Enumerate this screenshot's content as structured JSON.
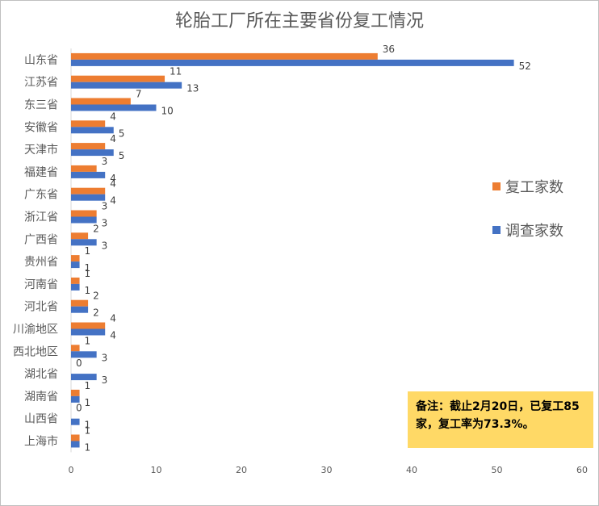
{
  "chart_data": {
    "type": "bar",
    "orientation": "horizontal",
    "title": "轮胎工厂所在主要省份复工情况",
    "categories": [
      "山东省",
      "江苏省",
      "东三省",
      "安徽省",
      "天津市",
      "福建省",
      "广东省",
      "浙江省",
      "广西省",
      "贵州省",
      "河南省",
      "河北省",
      "川渝地区",
      "西北地区",
      "湖北省",
      "湖南省",
      "山西省",
      "上海市"
    ],
    "series": [
      {
        "name": "复工家数",
        "color": "#ed7d31",
        "values": [
          36,
          11,
          7,
          4,
          4,
          3,
          4,
          3,
          2,
          1,
          1,
          2,
          4,
          1,
          0,
          1,
          0,
          1
        ]
      },
      {
        "name": "调查家数",
        "color": "#4472c4",
        "values": [
          52,
          13,
          10,
          5,
          5,
          4,
          4,
          3,
          3,
          1,
          1,
          2,
          4,
          3,
          3,
          1,
          1,
          1
        ]
      }
    ],
    "xlim": [
      0,
      60
    ],
    "xticks": [
      0,
      10,
      20,
      30,
      40,
      50,
      60
    ],
    "grid": false,
    "legend_position": "right",
    "annotation": "备注：截止2月20日，已复工85家，复工率为73.3%。"
  }
}
